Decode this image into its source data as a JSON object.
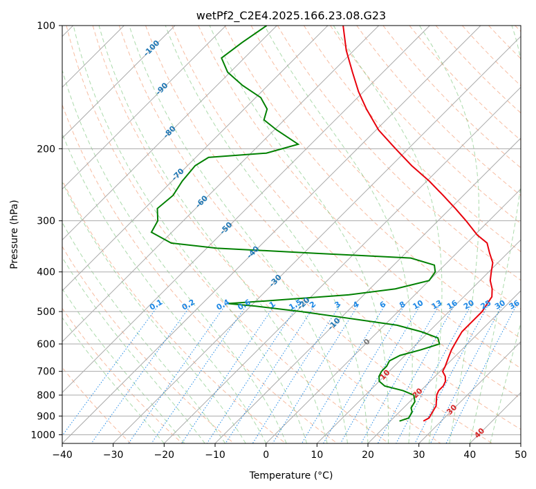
{
  "chart_data": {
    "type": "line",
    "title": "wetPf2_C2E4.2025.166.23.08.G23",
    "xlabel": "Temperature (°C)",
    "ylabel": "Pressure (hPa)",
    "xlim": [
      -40,
      50
    ],
    "ylim": [
      1050,
      100
    ],
    "yscale": "log",
    "skew": true,
    "grid": true,
    "x_ticks": [
      "−40",
      "−30",
      "−20",
      "−10",
      "0",
      "10",
      "20",
      "30",
      "40",
      "50"
    ],
    "y_ticks": [
      "100",
      "200",
      "300",
      "400",
      "500",
      "600",
      "700",
      "800",
      "900",
      "1000"
    ],
    "y_tick_values": [
      100,
      200,
      300,
      400,
      500,
      600,
      700,
      800,
      900,
      1000
    ],
    "colors": {
      "temperature": "#e8000b",
      "dewpoint": "#008000",
      "isotherm": "#aaaaaa",
      "dry_adiabat": "#f4a582",
      "moist_adiabat": "#66bb66",
      "mixing_ratio": "#1e88e5",
      "label_blue": "#1f77b4",
      "label_red": "#d62728"
    },
    "series": [
      {
        "key": "temperature",
        "points": [
          [
            926,
            26.5
          ],
          [
            910,
            27.0
          ],
          [
            880,
            26.5
          ],
          [
            850,
            26.0
          ],
          [
            800,
            24.0
          ],
          [
            780,
            23.5
          ],
          [
            760,
            23.5
          ],
          [
            740,
            23.0
          ],
          [
            720,
            22.0
          ],
          [
            700,
            20.5
          ],
          [
            680,
            20.0
          ],
          [
            650,
            19.0
          ],
          [
            620,
            18.0
          ],
          [
            600,
            17.5
          ],
          [
            580,
            17.0
          ],
          [
            560,
            16.5
          ],
          [
            520,
            16.5
          ],
          [
            500,
            16.5
          ],
          [
            480,
            16.0
          ],
          [
            460,
            15.5
          ],
          [
            440,
            14.0
          ],
          [
            420,
            12.0
          ],
          [
            400,
            10.5
          ],
          [
            380,
            9.0
          ],
          [
            360,
            6.5
          ],
          [
            340,
            4.0
          ],
          [
            325,
            0.5
          ],
          [
            300,
            -4.5
          ],
          [
            280,
            -9.0
          ],
          [
            260,
            -14.0
          ],
          [
            240,
            -19.5
          ],
          [
            220,
            -26.0
          ],
          [
            200,
            -32.5
          ],
          [
            180,
            -39.5
          ],
          [
            160,
            -46.0
          ],
          [
            145,
            -51.0
          ],
          [
            130,
            -56.0
          ],
          [
            115,
            -61.5
          ],
          [
            100,
            -67.0
          ]
        ]
      },
      {
        "key": "dewpoint",
        "points": [
          [
            926,
            21.8
          ],
          [
            910,
            23.0
          ],
          [
            880,
            22.5
          ],
          [
            860,
            21.5
          ],
          [
            830,
            21.0
          ],
          [
            800,
            19.5
          ],
          [
            780,
            16.5
          ],
          [
            760,
            12.0
          ],
          [
            740,
            10.0
          ],
          [
            720,
            9.0
          ],
          [
            700,
            8.5
          ],
          [
            680,
            8.5
          ],
          [
            660,
            8.0
          ],
          [
            640,
            9.0
          ],
          [
            620,
            12.0
          ],
          [
            600,
            14.5
          ],
          [
            580,
            13.0
          ],
          [
            560,
            8.5
          ],
          [
            540,
            2.5
          ],
          [
            520,
            -8.0
          ],
          [
            500,
            -19.0
          ],
          [
            485,
            -29.0
          ],
          [
            478,
            -35.0
          ],
          [
            470,
            -27.0
          ],
          [
            455,
            -13.0
          ],
          [
            440,
            -5.0
          ],
          [
            420,
            0.0
          ],
          [
            400,
            -0.5
          ],
          [
            385,
            -2.0
          ],
          [
            370,
            -8.0
          ],
          [
            360,
            -28.0
          ],
          [
            350,
            -48.0
          ],
          [
            340,
            -58.0
          ],
          [
            320,
            -64.0
          ],
          [
            300,
            -65.0
          ],
          [
            280,
            -67.5
          ],
          [
            260,
            -67.0
          ],
          [
            240,
            -68.0
          ],
          [
            220,
            -68.5
          ],
          [
            210,
            -67.5
          ],
          [
            205,
            -57.0
          ],
          [
            195,
            -52.5
          ],
          [
            180,
            -59.5
          ],
          [
            170,
            -64.0
          ],
          [
            160,
            -65.5
          ],
          [
            150,
            -69.0
          ],
          [
            140,
            -75.0
          ],
          [
            130,
            -80.5
          ],
          [
            120,
            -84.5
          ],
          [
            115,
            -84.0
          ],
          [
            110,
            -83.5
          ],
          [
            100,
            -82.0
          ]
        ]
      }
    ],
    "isotherm_labels": [
      "-100",
      "-90",
      "-80",
      "-70",
      "-60",
      "-50",
      "-40",
      "-30",
      "-20",
      "-10",
      "0",
      "10",
      "20",
      "30",
      "40"
    ],
    "mixing_ratio_labels": [
      "0.1",
      "0.2",
      "0.4",
      "0.6",
      "1",
      "1.5",
      "2",
      "3",
      "4",
      "6",
      "8",
      "10",
      "13",
      "16",
      "20",
      "25",
      "30",
      "36"
    ],
    "mixing_ratio_values": [
      0.1,
      0.2,
      0.4,
      0.6,
      1,
      1.5,
      2,
      3,
      4,
      6,
      8,
      10,
      13,
      16,
      20,
      25,
      30,
      36
    ]
  }
}
